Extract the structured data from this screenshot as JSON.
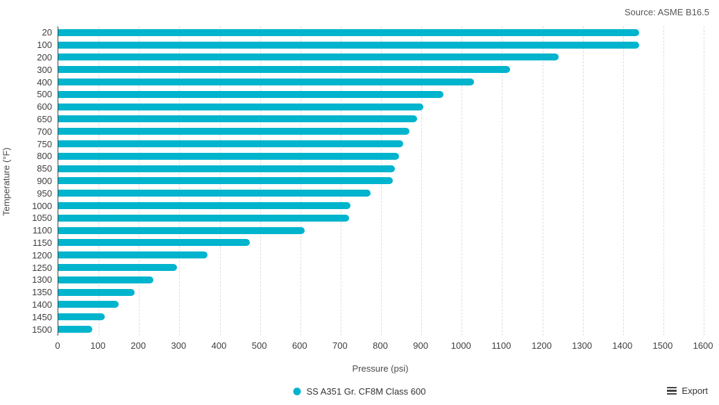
{
  "source_note": "Source: ASME B16.5",
  "chart_data": {
    "type": "bar",
    "orientation": "horizontal",
    "title": "",
    "xlabel": "Pressure (psi)",
    "ylabel": "Temperature (°F)",
    "xlim": [
      0,
      1600
    ],
    "x_ticks": [
      0,
      100,
      200,
      300,
      400,
      500,
      600,
      700,
      800,
      900,
      1000,
      1100,
      1200,
      1300,
      1400,
      1500,
      1600
    ],
    "grid": "vertical-dashed",
    "legend_position": "bottom-center",
    "categories": [
      20,
      100,
      200,
      300,
      400,
      500,
      600,
      650,
      700,
      750,
      800,
      850,
      900,
      950,
      1000,
      1050,
      1100,
      1150,
      1200,
      1250,
      1300,
      1350,
      1400,
      1450,
      1500
    ],
    "series": [
      {
        "name": "SS A351 Gr. CF8M Class 600",
        "values": [
          1440,
          1440,
          1240,
          1120,
          1030,
          955,
          905,
          890,
          870,
          855,
          845,
          835,
          830,
          775,
          725,
          720,
          610,
          475,
          370,
          295,
          235,
          190,
          150,
          115,
          85
        ]
      }
    ]
  },
  "legend": {
    "label": "SS A351 Gr. CF8M Class 600"
  },
  "export": {
    "label": "Export"
  },
  "colors": {
    "bar": "#00b4cd",
    "axis_line": "#3f3f3f",
    "gridline": "#dcdcdc",
    "tick_text": "#3d3d3d",
    "muted_text": "#565656"
  }
}
